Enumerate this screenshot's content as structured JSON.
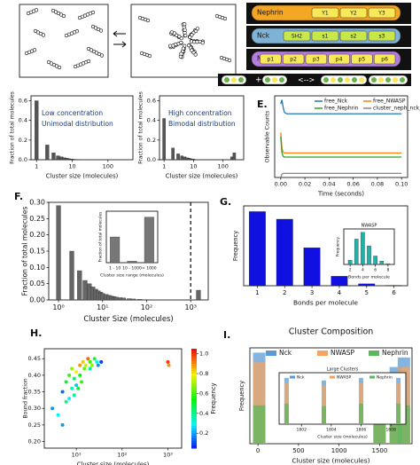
{
  "diagram": {
    "domains": [
      {
        "name": "Nephrin",
        "sites": [
          "Y1",
          "Y2",
          "Y3"
        ]
      },
      {
        "name": "Nck",
        "sites": [
          "SH2",
          "s1",
          "s2",
          "s3"
        ]
      },
      {
        "name": "NWasp",
        "sites": [
          "p1",
          "p2",
          "p3",
          "p4",
          "p5",
          "p6"
        ]
      }
    ],
    "reaction": {
      "plus": "+",
      "arrow": "<-->"
    }
  },
  "chart_data": [
    {
      "type": "bar",
      "x_scale": "log",
      "annotations": [
        "Low concentration",
        "Unimodal distribution"
      ],
      "x_label": "Cluster size (molecules)",
      "y_label": "Fraction of total molecules",
      "x": [
        1,
        2,
        3,
        4,
        5,
        6,
        7,
        8,
        9,
        10,
        12,
        14
      ],
      "values": [
        0.6,
        0.15,
        0.07,
        0.04,
        0.03,
        0.02,
        0.015,
        0.01,
        0.008,
        0.006,
        0.004,
        0.003
      ],
      "color": "#555555",
      "xlim": [
        0.7,
        500
      ],
      "ylim": [
        0,
        0.65
      ],
      "xticks": [
        1,
        10,
        100
      ],
      "yticks": [
        {
          "value": 0,
          "label": "0.0"
        },
        0.2,
        0.4,
        0.6
      ]
    },
    {
      "type": "bar",
      "x_scale": "log",
      "annotations": [
        "High concentration",
        "Bimodal distribution"
      ],
      "x_label": "Cluster size (molecules)",
      "y_label": "Fraction of total molecules",
      "x": [
        1,
        2,
        3,
        4,
        5,
        6,
        7,
        8,
        9,
        10,
        200,
        240
      ],
      "values": [
        0.42,
        0.12,
        0.06,
        0.04,
        0.03,
        0.02,
        0.015,
        0.01,
        0.008,
        0.006,
        0.03,
        0.07
      ],
      "color": "#555555",
      "xlim": [
        0.7,
        500
      ],
      "ylim": [
        0,
        0.65
      ],
      "xticks": [
        1,
        10,
        100
      ],
      "yticks": [
        {
          "value": 0,
          "label": "0.0"
        },
        0.2,
        0.4,
        0.6
      ]
    },
    {
      "type": "line",
      "panel": "E.",
      "x_label": "Time (seconds)",
      "y_label": "Observable Counts",
      "x": [
        0,
        0.001,
        0.002,
        0.003,
        0.005,
        0.01,
        0.02,
        0.04,
        0.06,
        0.08,
        0.1
      ],
      "series": [
        {
          "name": "free_Nck",
          "color": "#1f77b4",
          "values": [
            90,
            95,
            86,
            80,
            78,
            78,
            78,
            78,
            78,
            78,
            78
          ]
        },
        {
          "name": "free_NWASP",
          "color": "#ff7f0e",
          "values": [
            55,
            36,
            31,
            30,
            30,
            30,
            30,
            30,
            30,
            30,
            30
          ]
        },
        {
          "name": "free_Nephrin",
          "color": "#2ca02c",
          "values": [
            50,
            30,
            26,
            25,
            25,
            25,
            25,
            25,
            25,
            25,
            25
          ]
        },
        {
          "name": "cluster_neph_nck_me",
          "color": "#888888",
          "values": [
            0,
            4,
            5,
            5,
            5,
            5,
            5,
            5,
            5,
            5,
            5
          ]
        }
      ],
      "xlim": [
        -0.005,
        0.105
      ],
      "ylim": [
        0,
        100
      ],
      "xticks": [
        {
          "value": 0,
          "label": "0.00"
        },
        0.02,
        0.04,
        0.06,
        0.08,
        {
          "value": 0.1,
          "label": "0.10"
        }
      ]
    },
    {
      "type": "bar",
      "panel": "F.",
      "x_scale": "log",
      "x_label": "Cluster Size (molecules)",
      "y_label": "Fraction of total molecules",
      "x": [
        1,
        2,
        3,
        4,
        5,
        6,
        7,
        8,
        9,
        10,
        12,
        14,
        16,
        18,
        20,
        25,
        30,
        40,
        50,
        70,
        1500
      ],
      "values": [
        0.29,
        0.15,
        0.09,
        0.06,
        0.05,
        0.04,
        0.033,
        0.028,
        0.024,
        0.02,
        0.017,
        0.014,
        0.012,
        0.01,
        0.009,
        0.007,
        0.006,
        0.004,
        0.003,
        0.002,
        0.03
      ],
      "color": "#666666",
      "vline": 1000,
      "xlim": [
        0.6,
        2500
      ],
      "ylim": [
        0,
        0.3
      ],
      "xticks": [
        {
          "value": 1,
          "label": "10⁰"
        },
        {
          "value": 10,
          "label": "10¹"
        },
        {
          "value": 100,
          "label": "10²"
        },
        {
          "value": 1000,
          "label": "10³"
        }
      ],
      "yticks": [
        {
          "value": 0,
          "label": "0.00"
        },
        0.05,
        {
          "value": 0.1,
          "label": "0.10"
        },
        0.15,
        {
          "value": 0.2,
          "label": "0.20"
        },
        0.25,
        {
          "value": 0.3,
          "label": "0.30"
        }
      ]
    },
    {
      "type": "bar",
      "x_label": "Cluster size range (molecules)",
      "y_label": "Fraction of total molecules",
      "categories": [
        "1 - 10",
        "10 - 1000",
        "> 1000"
      ],
      "values": [
        0.35,
        0.02,
        0.62
      ],
      "color": "#777777",
      "ylim": [
        0,
        0.7
      ]
    },
    {
      "type": "bar",
      "panel": "G.",
      "x_label": "Bonds per molecule",
      "y_label": "Frequency",
      "x": [
        1,
        2,
        3,
        4,
        5,
        6
      ],
      "values": [
        0.39,
        0.35,
        0.2,
        0.05,
        0.01,
        0.002
      ],
      "color": "#1010e0",
      "xlim": [
        0.5,
        6.5
      ],
      "ylim": [
        0,
        0.42
      ],
      "xticks": [
        1,
        2,
        3,
        4,
        5,
        6
      ]
    },
    {
      "type": "bar",
      "title": "NWASP",
      "x_label": "Bonds per molecule",
      "y_label": "Frequency",
      "x": [
        2,
        3,
        4,
        5,
        6,
        7,
        8
      ],
      "values": [
        0.05,
        0.3,
        0.38,
        0.22,
        0.1,
        0.04,
        0.01
      ],
      "color": "#20b2aa",
      "xlim": [
        1,
        9
      ],
      "ylim": [
        0,
        0.42
      ],
      "xticks": [
        2,
        4,
        6,
        8
      ]
    },
    {
      "type": "scatter",
      "panel": "H.",
      "x_scale": "log",
      "x_label": "Cluster size (molecules)",
      "y_label": "Bound fraction",
      "colorbar_label": "Frequency",
      "x": [
        3,
        4,
        5,
        6,
        6,
        7,
        8,
        8,
        9,
        10,
        10,
        12,
        12,
        14,
        15,
        16,
        18,
        20,
        20,
        22,
        25,
        28,
        30,
        35,
        7,
        9,
        11,
        13,
        5,
        1000,
        1050
      ],
      "y": [
        0.3,
        0.28,
        0.35,
        0.32,
        0.38,
        0.4,
        0.36,
        0.42,
        0.39,
        0.41,
        0.37,
        0.43,
        0.4,
        0.44,
        0.42,
        0.43,
        0.45,
        0.44,
        0.42,
        0.43,
        0.45,
        0.44,
        0.43,
        0.44,
        0.33,
        0.34,
        0.36,
        0.38,
        0.25,
        0.44,
        0.43
      ],
      "c": [
        0.2,
        0.3,
        0.15,
        0.4,
        0.5,
        0.6,
        0.35,
        0.7,
        0.45,
        0.8,
        0.25,
        0.9,
        0.55,
        0.85,
        0.65,
        0.75,
        0.95,
        0.6,
        0.4,
        0.7,
        0.5,
        0.3,
        0.2,
        0.1,
        0.3,
        0.4,
        0.5,
        0.6,
        0.2,
        1.0,
        0.9
      ],
      "xlim": [
        2,
        2000
      ],
      "ylim": [
        0.18,
        0.48
      ],
      "clim": [
        0.05,
        1.05
      ],
      "xticks": [
        {
          "value": 10,
          "label": "10¹"
        },
        {
          "value": 100,
          "label": "10²"
        },
        {
          "value": 1000,
          "label": "10³"
        }
      ],
      "yticks": [
        {
          "value": 0.2,
          "label": "0.20"
        },
        0.25,
        {
          "value": 0.3,
          "label": "0.30"
        },
        0.35,
        {
          "value": 0.4,
          "label": "0.40"
        },
        0.45
      ],
      "cticks": [
        0.2,
        0.4,
        0.6,
        0.8,
        {
          "value": 1,
          "label": "1.0"
        }
      ]
    },
    {
      "type": "composition",
      "panel": "I.",
      "title": "Cluster Composition",
      "x_label": "Cluster size (molecules)",
      "y_label": "Frequency",
      "x": [
        15,
        1500,
        1700,
        1800
      ],
      "series": [
        {
          "name": "Nck",
          "color": "#5b9bd5",
          "values": [
            0.95,
            0.7,
            0.8,
            0.9
          ]
        },
        {
          "name": "NWASP",
          "color": "#f4a460",
          "values": [
            0.85,
            0.6,
            0.7,
            0.8
          ]
        },
        {
          "name": "Nephrin",
          "color": "#5cb85c",
          "values": [
            0.4,
            0.3,
            0.35,
            0.4
          ]
        }
      ],
      "xlim": [
        -100,
        1900
      ],
      "ylim": [
        0,
        1
      ],
      "xticks": [
        0,
        500,
        1000,
        1500
      ]
    },
    {
      "type": "composition",
      "title": "Large Clusters",
      "x_label": "Cluster size (molecules)",
      "x": [
        1801,
        1803.5,
        1806,
        1808.5
      ],
      "series": [
        {
          "name": "Nck",
          "color": "#5b9bd5",
          "values": [
            0.9,
            0.85,
            0.9,
            0.9
          ]
        },
        {
          "name": "NWASP",
          "color": "#f4a460",
          "values": [
            0.8,
            0.75,
            0.8,
            0.8
          ]
        },
        {
          "name": "Nephrin",
          "color": "#5cb85c",
          "values": [
            0.4,
            0.35,
            0.4,
            0.4
          ]
        }
      ],
      "xlim": [
        1800.5,
        1809
      ],
      "ylim": [
        0,
        1
      ],
      "xticks": [
        1802,
        1804,
        1806,
        1808
      ]
    }
  ]
}
